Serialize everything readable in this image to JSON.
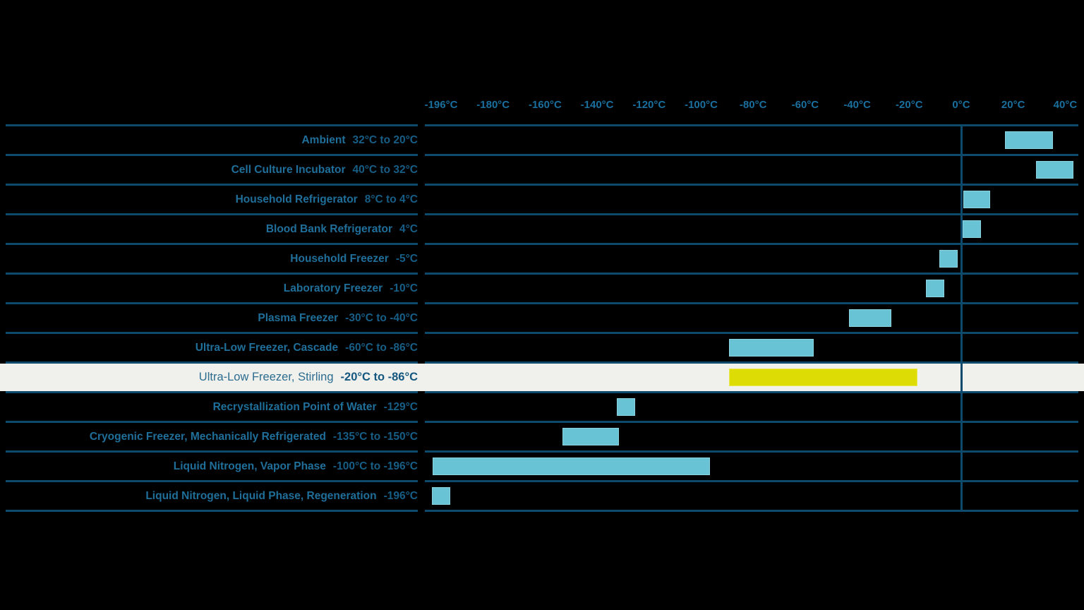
{
  "colors": {
    "background": "#000000",
    "grid_line": "#0d4a6b",
    "tick_text": "#1a6f9e",
    "label_name_text": "#1f6f9a",
    "label_range_text": "#175e86",
    "bar_teal": "#68c4d5",
    "bar_yellow": "#dedc05",
    "highlight_row_background": "#f0f0ed",
    "highlight_name_text": "#2c6d8f",
    "highlight_range_text": "#14587f"
  },
  "chart_data": {
    "type": "bar",
    "orientation": "horizontal-range",
    "grid": "row-separators-and-zero-line",
    "legend": "none",
    "x_ticks": [
      {
        "label": "-196°C",
        "value": -196
      },
      {
        "label": "-180°C",
        "value": -180
      },
      {
        "label": "-160°C",
        "value": -160
      },
      {
        "label": "-140°C",
        "value": -140
      },
      {
        "label": "-120°C",
        "value": -120
      },
      {
        "label": "-100°C",
        "value": -100
      },
      {
        "label": "-80°C",
        "value": -80
      },
      {
        "label": "-60°C",
        "value": -60
      },
      {
        "label": "-40°C",
        "value": -40
      },
      {
        "label": "-20°C",
        "value": -20
      },
      {
        "label": "0°C",
        "value": 0
      },
      {
        "label": "20°C",
        "value": 20
      },
      {
        "label": "40°C",
        "value": 40
      }
    ],
    "zero_line_value": 0,
    "rows": [
      {
        "name": "Ambient",
        "range_label": "32°C to 20°C",
        "min": 20,
        "max": 32,
        "style": "teal",
        "highlight": false
      },
      {
        "name": "Cell Culture Incubator",
        "range_label": "40°C to 32°C",
        "min": 32,
        "max": 40,
        "style": "teal",
        "highlight": false
      },
      {
        "name": "Household Refrigerator",
        "range_label": "8°C to 4°C",
        "min": 4,
        "max": 8,
        "style": "teal",
        "highlight": false
      },
      {
        "name": "Blood Bank Refrigerator",
        "range_label": "4°C",
        "min": 4,
        "max": 4,
        "style": "teal",
        "highlight": false
      },
      {
        "name": "Household Freezer",
        "range_label": "-5°C",
        "min": -5,
        "max": -5,
        "style": "teal",
        "highlight": false
      },
      {
        "name": "Laboratory Freezer",
        "range_label": "-10°C",
        "min": -10,
        "max": -10,
        "style": "teal",
        "highlight": false
      },
      {
        "name": "Plasma Freezer",
        "range_label": "-30°C to -40°C",
        "min": -40,
        "max": -30,
        "style": "teal",
        "highlight": false
      },
      {
        "name": "Ultra-Low Freezer, Cascade",
        "range_label": "-60°C to -86°C",
        "min": -86,
        "max": -60,
        "style": "teal",
        "highlight": false
      },
      {
        "name": "Ultra-Low Freezer, Stirling",
        "range_label": "-20°C to -86°C",
        "min": -86,
        "max": -20,
        "style": "yellow",
        "highlight": true
      },
      {
        "name": "Recrystallization Point of Water",
        "range_label": "-129°C",
        "min": -129,
        "max": -129,
        "style": "teal",
        "highlight": false
      },
      {
        "name": "Cryogenic Freezer, Mechanically Refrigerated",
        "range_label": "-135°C to -150°C",
        "min": -150,
        "max": -135,
        "style": "teal",
        "highlight": false
      },
      {
        "name": "Liquid Nitrogen, Vapor Phase",
        "range_label": "-100°C to -196°C",
        "min": -196,
        "max": -100,
        "style": "teal",
        "highlight": false
      },
      {
        "name": "Liquid Nitrogen, Liquid Phase, Regeneration",
        "range_label": "-196°C",
        "min": -196,
        "max": -196,
        "style": "teal",
        "highlight": false
      }
    ]
  }
}
